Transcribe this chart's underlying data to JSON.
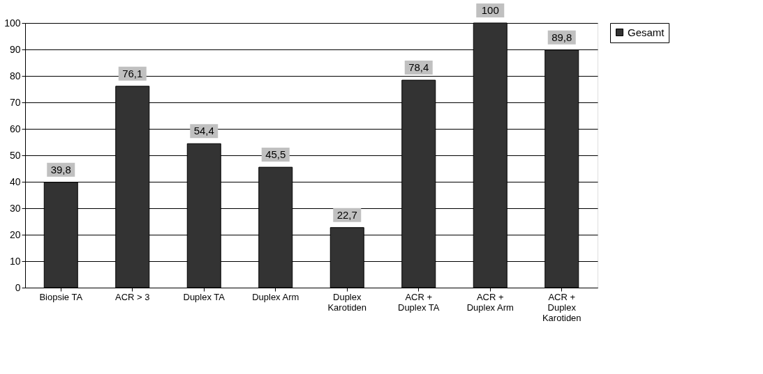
{
  "chart_data": {
    "type": "bar",
    "categories": [
      "Biopsie TA",
      "ACR > 3",
      "Duplex TA",
      "Duplex Arm",
      "Duplex Karotiden",
      "ACR + Duplex TA",
      "ACR + Duplex Arm",
      "ACR + Duplex Karotiden"
    ],
    "series": [
      {
        "name": "Gesamt",
        "color": "#333333",
        "values": [
          39.8,
          76.1,
          54.4,
          45.5,
          22.7,
          78.4,
          100,
          89.8
        ]
      }
    ],
    "value_labels": [
      "39,8",
      "76,1",
      "54,4",
      "45,5",
      "22,7",
      "78,4",
      "100",
      "89,8"
    ],
    "ylim": [
      0,
      100
    ],
    "yticks": [
      0,
      10,
      20,
      30,
      40,
      50,
      60,
      70,
      80,
      90,
      100
    ],
    "grid": "y",
    "legend": "right"
  }
}
